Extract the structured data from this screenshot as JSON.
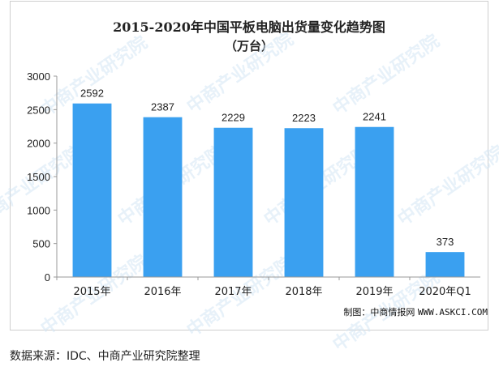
{
  "credit": {
    "label": "制图：中商情报网",
    "site": "WWW.ASKCI.COM"
  },
  "watermark": "中商产业研究院",
  "footer": {
    "source": "数据来源：IDC、中商产业研究院整理"
  },
  "colors": {
    "bar": "#3aa0f0",
    "axis": "#999999",
    "text": "#222222",
    "watermark": "#d4e6f5"
  },
  "chart_data": {
    "type": "bar",
    "title": "2015-2020年中国平板电脑出货量变化趋势图",
    "subtitle": "（万台）",
    "categories": [
      "2015年",
      "2016年",
      "2017年",
      "2018年",
      "2019年",
      "2020年Q1"
    ],
    "values": [
      2592,
      2387,
      2229,
      2223,
      2241,
      373
    ],
    "data_labels": [
      "2592",
      "2387",
      "2229",
      "2223",
      "2241",
      "373"
    ],
    "yticks": [
      "0",
      "500",
      "1000",
      "1500",
      "2000",
      "2500",
      "3000"
    ],
    "ylim": [
      0,
      3000
    ],
    "grid": false,
    "legend": "none"
  }
}
